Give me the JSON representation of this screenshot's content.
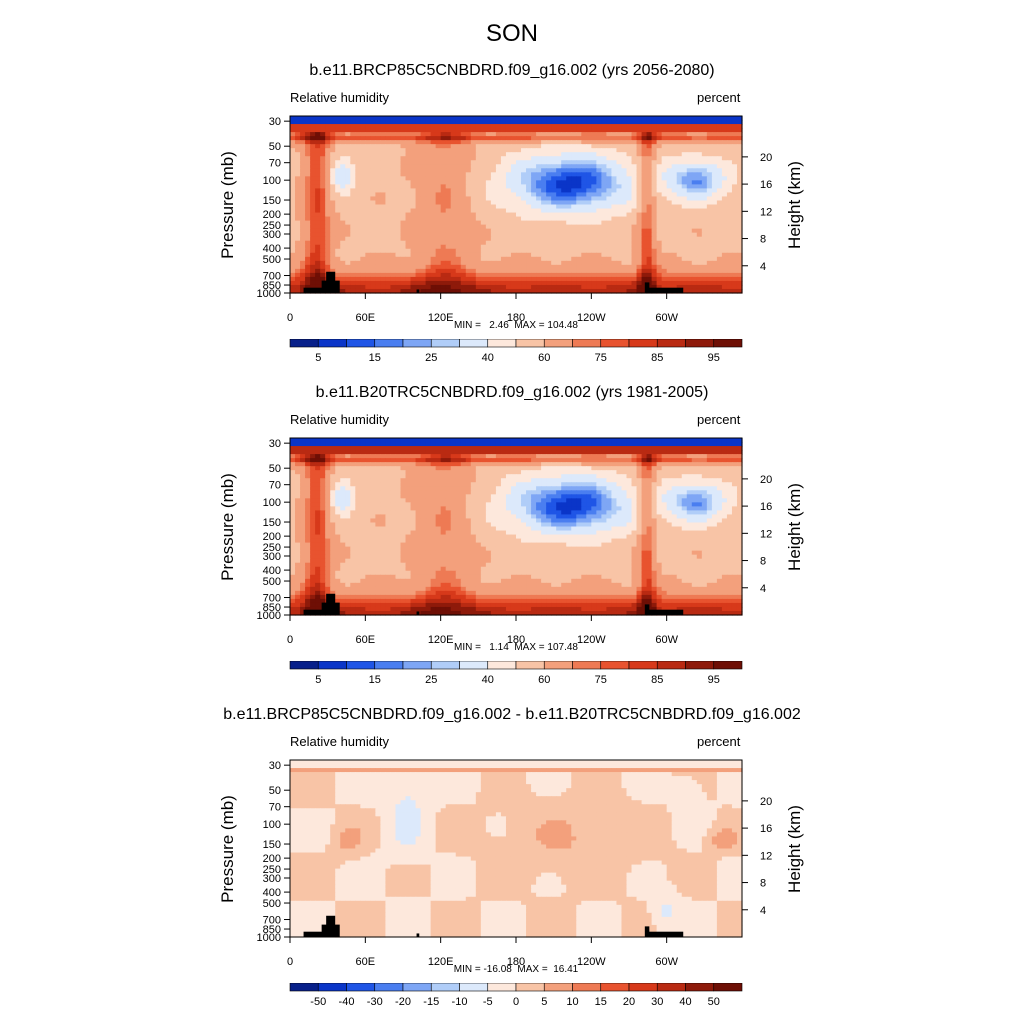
{
  "figure": {
    "season": "SON"
  },
  "palette": {
    "rh": [
      "#08208a",
      "#0a35c8",
      "#1f55e6",
      "#4a7ef0",
      "#7ea6f5",
      "#b0cdf8",
      "#dce9fb",
      "#fde8dc",
      "#f8c4a6",
      "#f3a07c",
      "#ee7a54",
      "#e8532f",
      "#d7391a",
      "#b92a12",
      "#8e1a0a",
      "#6e0f05"
    ],
    "diff": [
      "#08208a",
      "#0a35c8",
      "#1f55e6",
      "#4a7ef0",
      "#7ea6f5",
      "#b0cdf8",
      "#dce9fb",
      "#fde8dc",
      "#f8c4a6",
      "#f3a07c",
      "#ee7a54",
      "#e8532f",
      "#d7391a",
      "#b92a12",
      "#8e1a0a",
      "#6e0f05"
    ],
    "terrain": "#000000"
  },
  "chart_data": [
    {
      "type": "heatmap",
      "title": "b.e11.BRCP85C5CNBDRD.f09_g16.002 (yrs 2056-2080)",
      "left_label": "Relative humidity",
      "right_label": "percent",
      "ylabel": "Pressure (mb)",
      "y2label": "Height (km)",
      "x_ticks": [
        "0",
        "60E",
        "120E",
        "180",
        "120W",
        "60W"
      ],
      "y_ticks": [
        "30",
        "50",
        "70",
        "100",
        "150",
        "200",
        "250",
        "300",
        "400",
        "500",
        "700",
        "850",
        "1000"
      ],
      "y2_ticks": [
        "20",
        "16",
        "12",
        "8",
        "4"
      ],
      "minmax": "MIN =   2.46  MAX = 104.48",
      "colorbar_labels": [
        "5",
        "15",
        "25",
        "40",
        "60",
        "75",
        "85",
        "95"
      ],
      "min": 2.46,
      "max": 104.48
    },
    {
      "type": "heatmap",
      "title": "b.e11.B20TRC5CNBDRD.f09_g16.002 (yrs 1981-2005)",
      "left_label": "Relative humidity",
      "right_label": "percent",
      "ylabel": "Pressure (mb)",
      "y2label": "Height (km)",
      "x_ticks": [
        "0",
        "60E",
        "120E",
        "180",
        "120W",
        "60W"
      ],
      "y_ticks": [
        "30",
        "50",
        "70",
        "100",
        "150",
        "200",
        "250",
        "300",
        "400",
        "500",
        "700",
        "850",
        "1000"
      ],
      "y2_ticks": [
        "20",
        "16",
        "12",
        "8",
        "4"
      ],
      "minmax": "MIN =   1.14  MAX = 107.48",
      "colorbar_labels": [
        "5",
        "15",
        "25",
        "40",
        "60",
        "75",
        "85",
        "95"
      ],
      "min": 1.14,
      "max": 107.48
    },
    {
      "type": "heatmap",
      "title": "b.e11.BRCP85C5CNBDRD.f09_g16.002 - b.e11.B20TRC5CNBDRD.f09_g16.002",
      "left_label": "Relative humidity",
      "right_label": "percent",
      "ylabel": "Pressure (mb)",
      "y2label": "Height (km)",
      "x_ticks": [
        "0",
        "60E",
        "120E",
        "180",
        "120W",
        "60W"
      ],
      "y_ticks": [
        "30",
        "50",
        "70",
        "100",
        "150",
        "200",
        "250",
        "300",
        "400",
        "500",
        "700",
        "850",
        "1000"
      ],
      "y2_ticks": [
        "20",
        "16",
        "12",
        "8",
        "4"
      ],
      "minmax": "MIN = -16.08  MAX =  16.41",
      "colorbar_labels": [
        "-50",
        "-40",
        "-30",
        "-20",
        "-15",
        "-10",
        "-5",
        "0",
        "5",
        "10",
        "15",
        "20",
        "30",
        "40",
        "50"
      ],
      "min": -16.08,
      "max": 16.41
    }
  ]
}
